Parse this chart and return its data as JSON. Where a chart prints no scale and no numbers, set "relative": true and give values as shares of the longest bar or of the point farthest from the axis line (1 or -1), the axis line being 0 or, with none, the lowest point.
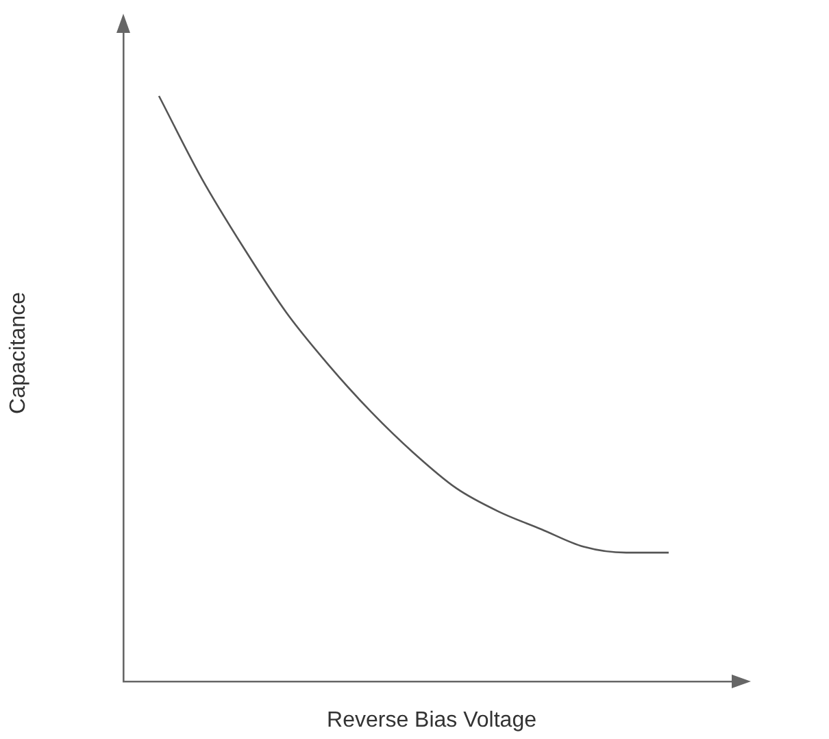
{
  "chart_data": {
    "type": "line",
    "relative": true,
    "xlabel": "Reverse Bias Voltage",
    "ylabel": "Capacitance",
    "categories": [
      null,
      null,
      null,
      null,
      null,
      null,
      null,
      null,
      null,
      null,
      null,
      null,
      null
    ],
    "series": [
      {
        "color": "#555555",
        "values": [
          1,
          0.86,
          0.74,
          0.63,
          0.54,
          0.46,
          0.39,
          0.33,
          0.29,
          0.26,
          0.23,
          0.22,
          0.22
        ]
      }
    ],
    "grid": false,
    "legend": false,
    "marker": "none",
    "line_style": "solid"
  }
}
